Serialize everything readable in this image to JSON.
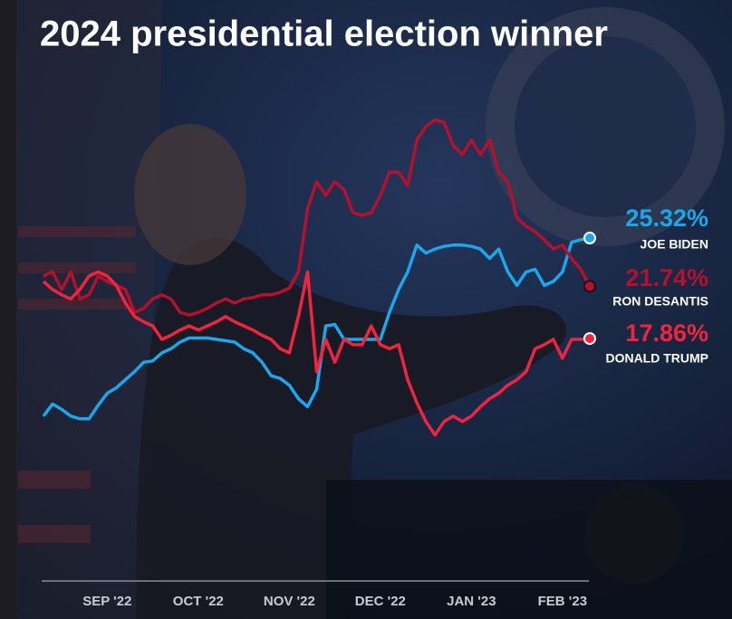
{
  "chart_data": {
    "type": "line",
    "title": "2024 presidential election winner",
    "categories": [
      null,
      null,
      null,
      null,
      null,
      null,
      null,
      "SEP '22",
      null,
      null,
      null,
      null,
      null,
      null,
      null,
      null,
      null,
      "OCT '22",
      null,
      null,
      null,
      null,
      null,
      null,
      null,
      null,
      null,
      "NOV '22",
      null,
      null,
      null,
      null,
      null,
      null,
      null,
      null,
      null,
      "DEC '22",
      null,
      null,
      null,
      null,
      null,
      null,
      null,
      null,
      null,
      "JAN '23",
      null,
      null,
      null,
      null,
      null,
      null,
      null,
      null,
      null,
      "FEB '23",
      null,
      null,
      null
    ],
    "ylim": [
      0,
      36
    ],
    "series": [
      {
        "name": "JOE BIDEN",
        "color": "#1aa7ec",
        "values": [
          12.1,
          13.0,
          12.6,
          12.1,
          11.9,
          11.9,
          12.9,
          13.8,
          14.2,
          14.8,
          15.4,
          16.1,
          16.2,
          16.8,
          17.1,
          17.6,
          17.9,
          17.9,
          17.9,
          17.8,
          17.7,
          17.6,
          17.1,
          16.8,
          16.1,
          15.1,
          14.9,
          14.4,
          13.4,
          12.8,
          14.1,
          18.8,
          18.9,
          17.8,
          17.8,
          17.8,
          17.8,
          17.8,
          19.8,
          21.5,
          22.8,
          24.8,
          24.2,
          24.5,
          24.7,
          24.8,
          24.8,
          24.7,
          24.5,
          23.8,
          24.5,
          22.8,
          21.8,
          22.8,
          23.0,
          21.8,
          22.1,
          22.8,
          25.0,
          25.2,
          25.32
        ],
        "value_labels": [
          null,
          null,
          null,
          null,
          null,
          null,
          null,
          null,
          null,
          null,
          null,
          null,
          null,
          null,
          null,
          null,
          null,
          null,
          null,
          null,
          null,
          null,
          null,
          null,
          null,
          null,
          null,
          null,
          null,
          null,
          null,
          null,
          null,
          null,
          null,
          null,
          null,
          null,
          null,
          null,
          null,
          null,
          null,
          null,
          null,
          null,
          null,
          null,
          null,
          null,
          null,
          null,
          null,
          null,
          null,
          null,
          null,
          null,
          null,
          null,
          "25.32%"
        ]
      },
      {
        "name": "RON DESANTIS",
        "color": "#b5102d",
        "values": [
          22.5,
          22.8,
          21.5,
          22.8,
          20.8,
          21.1,
          22.5,
          22.1,
          21.8,
          21.5,
          19.8,
          20.1,
          20.8,
          21.1,
          20.8,
          19.8,
          19.6,
          19.8,
          20.1,
          20.5,
          20.8,
          20.5,
          20.8,
          20.9,
          21.1,
          21.1,
          21.3,
          21.6,
          22.8,
          27.5,
          29.5,
          28.5,
          29.5,
          28.9,
          27.2,
          27.0,
          27.2,
          28.5,
          30.2,
          30.2,
          29.2,
          32.6,
          33.6,
          34.1,
          33.9,
          32.2,
          31.5,
          32.6,
          31.5,
          32.6,
          30.2,
          29.5,
          26.8,
          26.2,
          25.8,
          25.2,
          24.5,
          24.8,
          23.8,
          23.0,
          21.74
        ],
        "value_labels": [
          null,
          null,
          null,
          null,
          null,
          null,
          null,
          null,
          null,
          null,
          null,
          null,
          null,
          null,
          null,
          null,
          null,
          null,
          null,
          null,
          null,
          null,
          null,
          null,
          null,
          null,
          null,
          null,
          null,
          null,
          null,
          null,
          null,
          null,
          null,
          null,
          null,
          null,
          null,
          null,
          null,
          null,
          null,
          null,
          null,
          null,
          null,
          null,
          null,
          null,
          null,
          null,
          null,
          null,
          null,
          null,
          null,
          null,
          null,
          null,
          "21.74%"
        ]
      },
      {
        "name": "DONALD TRUMP",
        "color": "#f0243e",
        "values": [
          22.1,
          21.5,
          21.1,
          20.8,
          21.5,
          22.5,
          22.8,
          22.5,
          21.8,
          20.5,
          19.5,
          19.1,
          18.8,
          17.8,
          18.1,
          18.5,
          18.8,
          18.5,
          18.8,
          19.1,
          19.5,
          19.1,
          18.8,
          18.5,
          18.1,
          17.8,
          17.1,
          16.8,
          19.5,
          22.8,
          15.4,
          17.8,
          16.1,
          17.8,
          17.4,
          17.4,
          18.8,
          17.4,
          17.1,
          17.4,
          14.8,
          13.1,
          11.7,
          10.7,
          11.7,
          12.1,
          11.7,
          12.1,
          12.8,
          13.4,
          13.8,
          14.4,
          14.8,
          15.4,
          17.1,
          17.4,
          17.8,
          16.4,
          17.8,
          17.8,
          17.86
        ],
        "value_labels": [
          null,
          null,
          null,
          null,
          null,
          null,
          null,
          null,
          null,
          null,
          null,
          null,
          null,
          null,
          null,
          null,
          null,
          null,
          null,
          null,
          null,
          null,
          null,
          null,
          null,
          null,
          null,
          null,
          null,
          null,
          null,
          null,
          null,
          null,
          null,
          null,
          null,
          null,
          null,
          null,
          null,
          null,
          null,
          null,
          null,
          null,
          null,
          null,
          null,
          null,
          null,
          null,
          null,
          null,
          null,
          null,
          null,
          null,
          null,
          null,
          "17.86%"
        ]
      }
    ]
  }
}
